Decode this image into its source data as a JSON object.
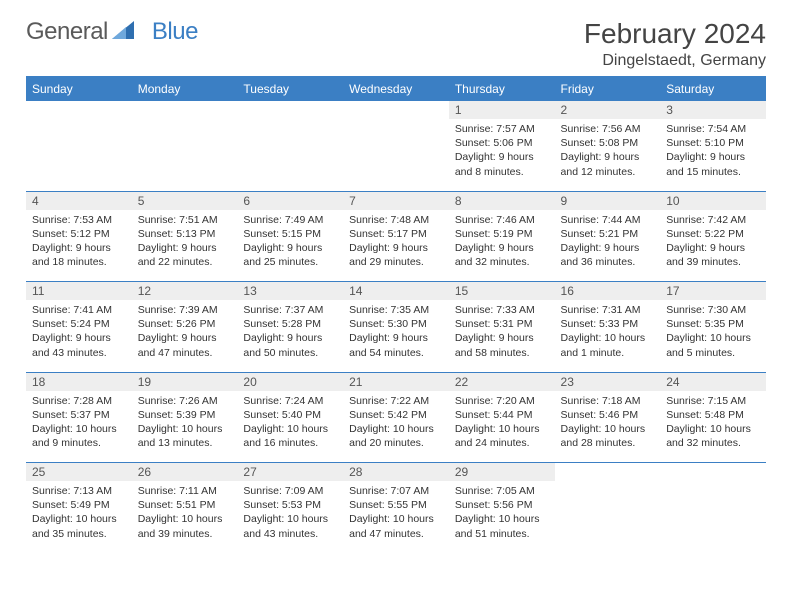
{
  "logo": {
    "part1": "General",
    "part2": "Blue"
  },
  "title": "February 2024",
  "location": "Dingelstaedt, Germany",
  "colors": {
    "header_bg": "#3b7fc4",
    "header_text": "#ffffff",
    "daynum_bg": "#eeeeee",
    "border": "#3b7fc4",
    "text": "#333333",
    "logo_gray": "#5a5a5a",
    "logo_blue": "#3b7fc4"
  },
  "day_headers": [
    "Sunday",
    "Monday",
    "Tuesday",
    "Wednesday",
    "Thursday",
    "Friday",
    "Saturday"
  ],
  "weeks": [
    {
      "nums": [
        "",
        "",
        "",
        "",
        "1",
        "2",
        "3"
      ],
      "cells": [
        null,
        null,
        null,
        null,
        {
          "sunrise": "Sunrise: 7:57 AM",
          "sunset": "Sunset: 5:06 PM",
          "day1": "Daylight: 9 hours",
          "day2": "and 8 minutes."
        },
        {
          "sunrise": "Sunrise: 7:56 AM",
          "sunset": "Sunset: 5:08 PM",
          "day1": "Daylight: 9 hours",
          "day2": "and 12 minutes."
        },
        {
          "sunrise": "Sunrise: 7:54 AM",
          "sunset": "Sunset: 5:10 PM",
          "day1": "Daylight: 9 hours",
          "day2": "and 15 minutes."
        }
      ]
    },
    {
      "nums": [
        "4",
        "5",
        "6",
        "7",
        "8",
        "9",
        "10"
      ],
      "cells": [
        {
          "sunrise": "Sunrise: 7:53 AM",
          "sunset": "Sunset: 5:12 PM",
          "day1": "Daylight: 9 hours",
          "day2": "and 18 minutes."
        },
        {
          "sunrise": "Sunrise: 7:51 AM",
          "sunset": "Sunset: 5:13 PM",
          "day1": "Daylight: 9 hours",
          "day2": "and 22 minutes."
        },
        {
          "sunrise": "Sunrise: 7:49 AM",
          "sunset": "Sunset: 5:15 PM",
          "day1": "Daylight: 9 hours",
          "day2": "and 25 minutes."
        },
        {
          "sunrise": "Sunrise: 7:48 AM",
          "sunset": "Sunset: 5:17 PM",
          "day1": "Daylight: 9 hours",
          "day2": "and 29 minutes."
        },
        {
          "sunrise": "Sunrise: 7:46 AM",
          "sunset": "Sunset: 5:19 PM",
          "day1": "Daylight: 9 hours",
          "day2": "and 32 minutes."
        },
        {
          "sunrise": "Sunrise: 7:44 AM",
          "sunset": "Sunset: 5:21 PM",
          "day1": "Daylight: 9 hours",
          "day2": "and 36 minutes."
        },
        {
          "sunrise": "Sunrise: 7:42 AM",
          "sunset": "Sunset: 5:22 PM",
          "day1": "Daylight: 9 hours",
          "day2": "and 39 minutes."
        }
      ]
    },
    {
      "nums": [
        "11",
        "12",
        "13",
        "14",
        "15",
        "16",
        "17"
      ],
      "cells": [
        {
          "sunrise": "Sunrise: 7:41 AM",
          "sunset": "Sunset: 5:24 PM",
          "day1": "Daylight: 9 hours",
          "day2": "and 43 minutes."
        },
        {
          "sunrise": "Sunrise: 7:39 AM",
          "sunset": "Sunset: 5:26 PM",
          "day1": "Daylight: 9 hours",
          "day2": "and 47 minutes."
        },
        {
          "sunrise": "Sunrise: 7:37 AM",
          "sunset": "Sunset: 5:28 PM",
          "day1": "Daylight: 9 hours",
          "day2": "and 50 minutes."
        },
        {
          "sunrise": "Sunrise: 7:35 AM",
          "sunset": "Sunset: 5:30 PM",
          "day1": "Daylight: 9 hours",
          "day2": "and 54 minutes."
        },
        {
          "sunrise": "Sunrise: 7:33 AM",
          "sunset": "Sunset: 5:31 PM",
          "day1": "Daylight: 9 hours",
          "day2": "and 58 minutes."
        },
        {
          "sunrise": "Sunrise: 7:31 AM",
          "sunset": "Sunset: 5:33 PM",
          "day1": "Daylight: 10 hours",
          "day2": "and 1 minute."
        },
        {
          "sunrise": "Sunrise: 7:30 AM",
          "sunset": "Sunset: 5:35 PM",
          "day1": "Daylight: 10 hours",
          "day2": "and 5 minutes."
        }
      ]
    },
    {
      "nums": [
        "18",
        "19",
        "20",
        "21",
        "22",
        "23",
        "24"
      ],
      "cells": [
        {
          "sunrise": "Sunrise: 7:28 AM",
          "sunset": "Sunset: 5:37 PM",
          "day1": "Daylight: 10 hours",
          "day2": "and 9 minutes."
        },
        {
          "sunrise": "Sunrise: 7:26 AM",
          "sunset": "Sunset: 5:39 PM",
          "day1": "Daylight: 10 hours",
          "day2": "and 13 minutes."
        },
        {
          "sunrise": "Sunrise: 7:24 AM",
          "sunset": "Sunset: 5:40 PM",
          "day1": "Daylight: 10 hours",
          "day2": "and 16 minutes."
        },
        {
          "sunrise": "Sunrise: 7:22 AM",
          "sunset": "Sunset: 5:42 PM",
          "day1": "Daylight: 10 hours",
          "day2": "and 20 minutes."
        },
        {
          "sunrise": "Sunrise: 7:20 AM",
          "sunset": "Sunset: 5:44 PM",
          "day1": "Daylight: 10 hours",
          "day2": "and 24 minutes."
        },
        {
          "sunrise": "Sunrise: 7:18 AM",
          "sunset": "Sunset: 5:46 PM",
          "day1": "Daylight: 10 hours",
          "day2": "and 28 minutes."
        },
        {
          "sunrise": "Sunrise: 7:15 AM",
          "sunset": "Sunset: 5:48 PM",
          "day1": "Daylight: 10 hours",
          "day2": "and 32 minutes."
        }
      ]
    },
    {
      "nums": [
        "25",
        "26",
        "27",
        "28",
        "29",
        "",
        ""
      ],
      "cells": [
        {
          "sunrise": "Sunrise: 7:13 AM",
          "sunset": "Sunset: 5:49 PM",
          "day1": "Daylight: 10 hours",
          "day2": "and 35 minutes."
        },
        {
          "sunrise": "Sunrise: 7:11 AM",
          "sunset": "Sunset: 5:51 PM",
          "day1": "Daylight: 10 hours",
          "day2": "and 39 minutes."
        },
        {
          "sunrise": "Sunrise: 7:09 AM",
          "sunset": "Sunset: 5:53 PM",
          "day1": "Daylight: 10 hours",
          "day2": "and 43 minutes."
        },
        {
          "sunrise": "Sunrise: 7:07 AM",
          "sunset": "Sunset: 5:55 PM",
          "day1": "Daylight: 10 hours",
          "day2": "and 47 minutes."
        },
        {
          "sunrise": "Sunrise: 7:05 AM",
          "sunset": "Sunset: 5:56 PM",
          "day1": "Daylight: 10 hours",
          "day2": "and 51 minutes."
        },
        null,
        null
      ]
    }
  ]
}
